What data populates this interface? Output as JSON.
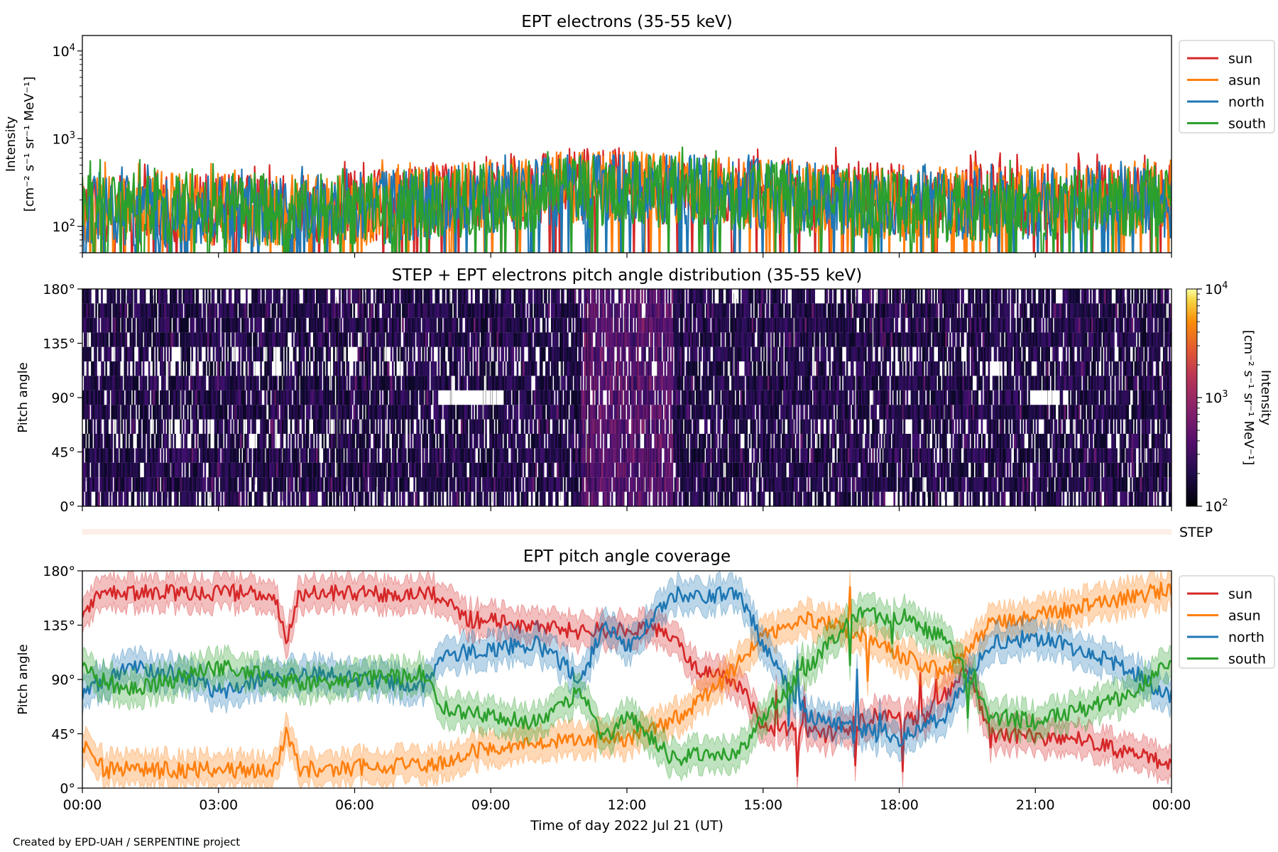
{
  "credit": "Created by EPD-UAH / SERPENTINE project",
  "series_colors": {
    "sun": "#d62728",
    "asun": "#ff7f0e",
    "north": "#1f77b4",
    "south": "#2ca02c"
  },
  "chart_data": [
    {
      "type": "line",
      "title": "EPT electrons (35-55 keV)",
      "ylabel_line1": "Intensity",
      "ylabel_line2": "[cm⁻² s⁻¹ sr⁻¹ MeV⁻¹]",
      "yscale": "log",
      "ylim": [
        50,
        15000
      ],
      "yticks": [
        {
          "value": 100,
          "base": "10",
          "exp": "2"
        },
        {
          "value": 1000,
          "base": "10",
          "exp": "3"
        },
        {
          "value": 10000,
          "base": "10",
          "exp": "4"
        }
      ],
      "xlim_hours": [
        0,
        24
      ],
      "legend": "outside-right-top",
      "series": [
        {
          "name": "sun",
          "color": "#d62728",
          "typical": [
            [
              0,
              150
            ],
            [
              6,
              160
            ],
            [
              11.5,
              320
            ],
            [
              12.5,
              280
            ],
            [
              18,
              200
            ],
            [
              24,
              200
            ]
          ],
          "peak_max": 900
        },
        {
          "name": "asun",
          "color": "#ff7f0e",
          "typical": [
            [
              0,
              160
            ],
            [
              6,
              150
            ],
            [
              11.5,
              300
            ],
            [
              18,
              180
            ],
            [
              24,
              220
            ]
          ],
          "peak_max": 700
        },
        {
          "name": "north",
          "color": "#1f77b4",
          "typical": [
            [
              0,
              150
            ],
            [
              6,
              150
            ],
            [
              12,
              280
            ],
            [
              18,
              170
            ],
            [
              24,
              190
            ]
          ],
          "peak_max": 650
        },
        {
          "name": "south",
          "color": "#2ca02c",
          "typical": [
            [
              0,
              170
            ],
            [
              6,
              150
            ],
            [
              12,
              260
            ],
            [
              18,
              170
            ],
            [
              24,
              180
            ]
          ],
          "peak_max": 800
        }
      ]
    },
    {
      "type": "heatmap",
      "title": "STEP + EPT electrons pitch angle distribution (35-55 keV)",
      "ylabel": "Pitch angle",
      "ylim": [
        0,
        180
      ],
      "yticks": [
        "0°",
        "45°",
        "90°",
        "135°",
        "180°"
      ],
      "colorbar": {
        "scale": "log",
        "range": [
          100,
          10000
        ],
        "colormap": "inferno",
        "label_line1": "Intensity",
        "label_line2": "[cm⁻² s⁻¹ sr⁻¹ MeV⁻¹]",
        "ticks": [
          {
            "value": 100,
            "base": "10",
            "exp": "2"
          },
          {
            "value": 1000,
            "base": "10",
            "exp": "3"
          },
          {
            "value": 10000,
            "base": "10",
            "exp": "4"
          }
        ]
      }
    },
    {
      "type": "heatmap",
      "label": "STEP"
    },
    {
      "type": "line",
      "title": "EPT pitch angle coverage",
      "ylabel": "Pitch angle",
      "xlabel": "Time of day 2022 Jul 21 (UT)",
      "ylim": [
        0,
        180
      ],
      "yticks": [
        "0°",
        "45°",
        "90°",
        "135°",
        "180°"
      ],
      "xticks": [
        "00:00",
        "03:00",
        "06:00",
        "09:00",
        "12:00",
        "15:00",
        "18:00",
        "21:00",
        "00:00"
      ],
      "legend": "outside-right-top",
      "series": [
        {
          "name": "sun",
          "color": "#d62728",
          "pitch_deg": [
            [
              0,
              148
            ],
            [
              0.5,
              162
            ],
            [
              4.2,
              162
            ],
            [
              4.5,
              125
            ],
            [
              4.8,
              162
            ],
            [
              7.8,
              160
            ],
            [
              8.5,
              140
            ],
            [
              11,
              130
            ],
            [
              12,
              132
            ],
            [
              13,
              128
            ],
            [
              13.5,
              100
            ],
            [
              14.5,
              85
            ],
            [
              15,
              50
            ],
            [
              16.5,
              45
            ],
            [
              17.5,
              60
            ],
            [
              18.5,
              55
            ],
            [
              19.5,
              100
            ],
            [
              20,
              45
            ],
            [
              22,
              40
            ],
            [
              23.5,
              25
            ],
            [
              24,
              20
            ]
          ]
        },
        {
          "name": "asun",
          "color": "#ff7f0e",
          "pitch_deg": [
            [
              0,
              35
            ],
            [
              0.5,
              15
            ],
            [
              4.2,
              15
            ],
            [
              4.5,
              45
            ],
            [
              4.8,
              15
            ],
            [
              7.8,
              20
            ],
            [
              8.5,
              30
            ],
            [
              11,
              40
            ],
            [
              12,
              40
            ],
            [
              13,
              55
            ],
            [
              14,
              85
            ],
            [
              15,
              125
            ],
            [
              16,
              140
            ],
            [
              17,
              130
            ],
            [
              18,
              110
            ],
            [
              19,
              95
            ],
            [
              20,
              135
            ],
            [
              22,
              150
            ],
            [
              24,
              165
            ]
          ]
        },
        {
          "name": "north",
          "color": "#1f77b4",
          "pitch_deg": [
            [
              0,
              80
            ],
            [
              1,
              100
            ],
            [
              2,
              95
            ],
            [
              3,
              80
            ],
            [
              4,
              90
            ],
            [
              5,
              95
            ],
            [
              7.5,
              85
            ],
            [
              8,
              110
            ],
            [
              10,
              120
            ],
            [
              11,
              90
            ],
            [
              11.5,
              135
            ],
            [
              12,
              115
            ],
            [
              13,
              160
            ],
            [
              14.5,
              160
            ],
            [
              15,
              120
            ],
            [
              16,
              60
            ],
            [
              17,
              50
            ],
            [
              18,
              40
            ],
            [
              19,
              60
            ],
            [
              20,
              120
            ],
            [
              21,
              125
            ],
            [
              22,
              115
            ],
            [
              23,
              100
            ],
            [
              24,
              75
            ]
          ]
        },
        {
          "name": "south",
          "color": "#2ca02c",
          "pitch_deg": [
            [
              0,
              98
            ],
            [
              1,
              80
            ],
            [
              2,
              90
            ],
            [
              3,
              100
            ],
            [
              4,
              95
            ],
            [
              5,
              85
            ],
            [
              7.5,
              95
            ],
            [
              8,
              65
            ],
            [
              10,
              55
            ],
            [
              11,
              80
            ],
            [
              11.5,
              40
            ],
            [
              12,
              60
            ],
            [
              13,
              25
            ],
            [
              14.5,
              30
            ],
            [
              15,
              60
            ],
            [
              16,
              100
            ],
            [
              17,
              145
            ],
            [
              18,
              140
            ],
            [
              19,
              125
            ],
            [
              20,
              60
            ],
            [
              21,
              55
            ],
            [
              22,
              65
            ],
            [
              23,
              75
            ],
            [
              24,
              105
            ]
          ]
        }
      ]
    }
  ]
}
